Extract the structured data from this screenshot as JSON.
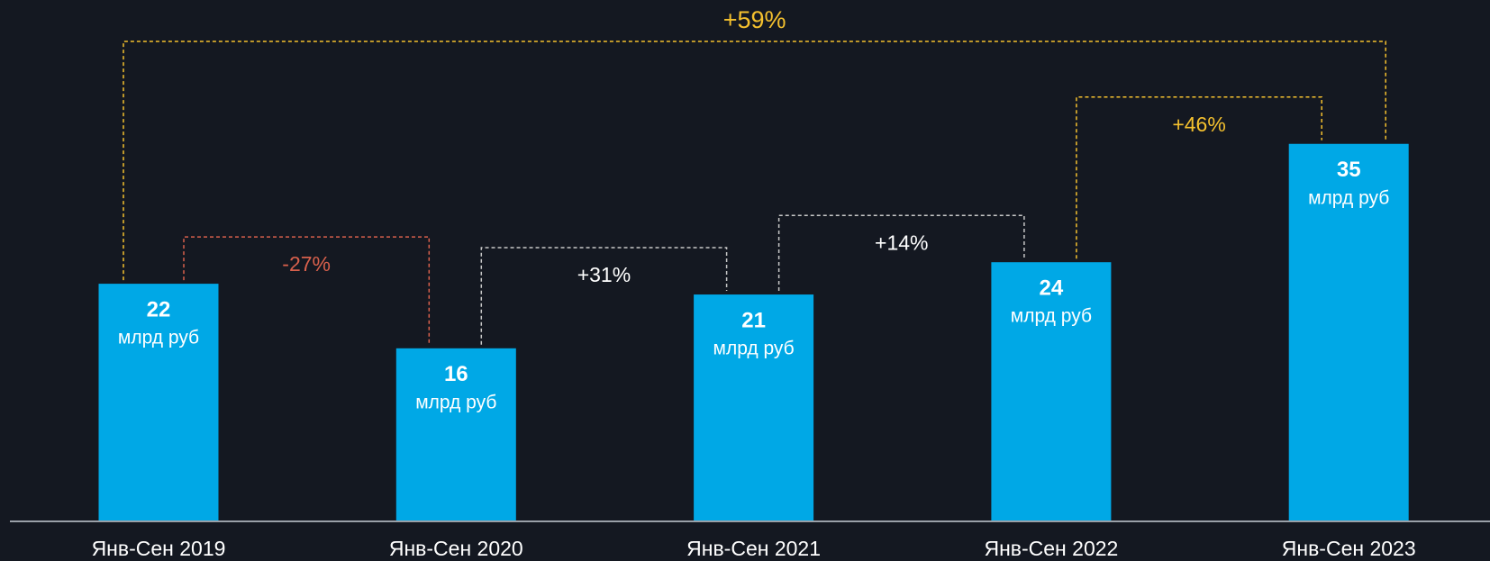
{
  "chart_data": {
    "type": "bar",
    "categories": [
      "Янв-Сен 2019",
      "Янв-Сен 2020",
      "Янв-Сен 2021",
      "Янв-Сен 2022",
      "Янв-Сен 2023"
    ],
    "values": [
      22,
      16,
      21,
      24,
      35
    ],
    "unit": "млрд руб",
    "color": "#00a8e6",
    "changes": [
      "-27%",
      "+31%",
      "+14%",
      "+46%"
    ],
    "change_colors": [
      "#d8604c",
      "#ffffff",
      "#ffffff",
      "#f5c12e"
    ],
    "total_change": "+59%",
    "total_change_color": "#f5c12e"
  }
}
